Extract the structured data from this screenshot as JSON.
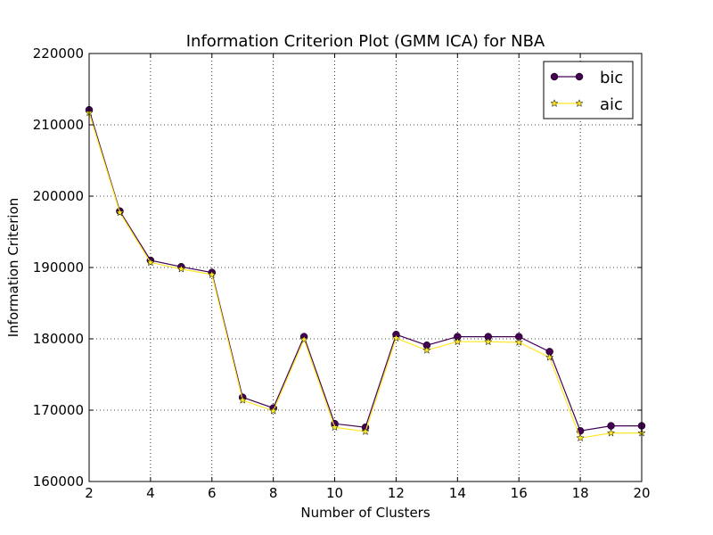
{
  "chart_data": {
    "type": "line",
    "title": "Information Criterion Plot (GMM ICA) for NBA",
    "xlabel": "Number of Clusters",
    "ylabel": "Information Criterion",
    "xlim": [
      2,
      20
    ],
    "ylim": [
      160000,
      220000
    ],
    "xticks": [
      2,
      4,
      6,
      8,
      10,
      12,
      14,
      16,
      18,
      20
    ],
    "yticks": [
      160000,
      170000,
      180000,
      190000,
      200000,
      210000,
      220000
    ],
    "grid": true,
    "legend_position": "top-right",
    "x": [
      2,
      3,
      4,
      5,
      6,
      7,
      8,
      9,
      10,
      11,
      12,
      13,
      14,
      15,
      16,
      17,
      18,
      19,
      20
    ],
    "series": [
      {
        "name": "bic",
        "color": "#440154",
        "marker": "circle",
        "values": [
          212100,
          197900,
          191000,
          190100,
          189300,
          171800,
          170300,
          180300,
          168100,
          167600,
          180600,
          179100,
          180300,
          180300,
          180300,
          178200,
          167100,
          167800,
          167800
        ]
      },
      {
        "name": "aic",
        "color": "#fde725",
        "marker": "star",
        "values": [
          211700,
          197700,
          190700,
          189800,
          189000,
          171400,
          169900,
          179900,
          167600,
          167000,
          180100,
          178400,
          179600,
          179600,
          179500,
          177400,
          166100,
          166800,
          166800
        ]
      }
    ]
  }
}
